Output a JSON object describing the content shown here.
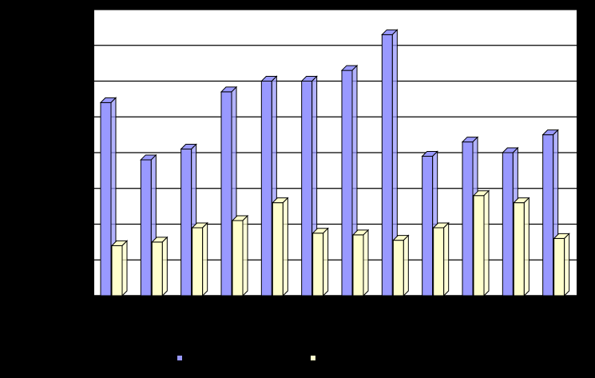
{
  "chart_data": {
    "type": "bar",
    "title": "",
    "xlabel": "",
    "ylabel": "",
    "categories": [
      "",
      "",
      "",
      "",
      "",
      "",
      "",
      "",
      "",
      "",
      "",
      ""
    ],
    "ylim": [
      0,
      8
    ],
    "grid": true,
    "legend": "bottom",
    "series": [
      {
        "name": "",
        "color": "#9999FF",
        "values": [
          5.4,
          3.8,
          4.1,
          5.7,
          6.0,
          6.0,
          6.3,
          7.3,
          3.9,
          4.3,
          4.0,
          4.5
        ]
      },
      {
        "name": "",
        "color": "#FFFFCC",
        "values": [
          1.4,
          1.5,
          1.9,
          2.1,
          2.6,
          1.75,
          1.7,
          1.55,
          1.9,
          2.8,
          2.6,
          1.6
        ]
      }
    ]
  }
}
